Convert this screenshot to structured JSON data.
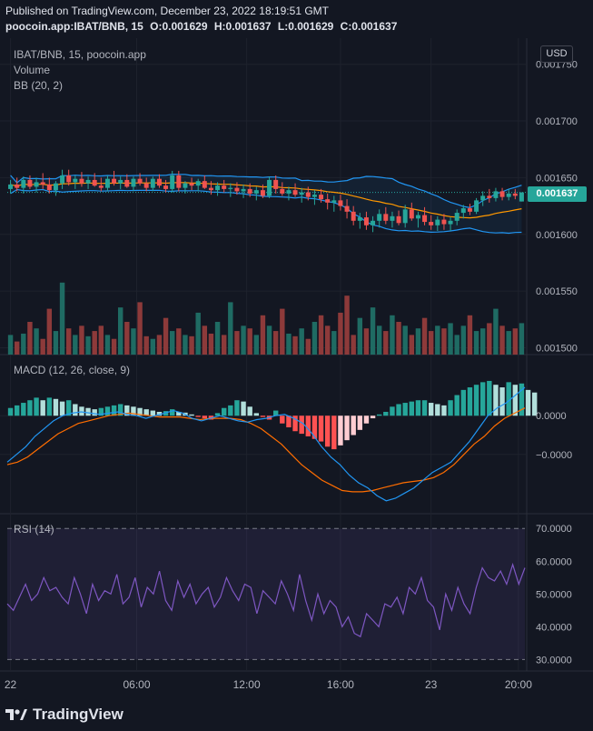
{
  "header": {
    "published": "Published on TradingView.com, December 23, 2022 18:19:51 GMT",
    "symbol_line": "poocoin.app:IBAT/BNB, 15",
    "o": "O:0.001629",
    "h": "H:0.001637",
    "l": "L:0.001629",
    "c": "C:0.001637"
  },
  "currency_button": "USD",
  "brand": "TradingView",
  "price_tag": "0.001637",
  "colors": {
    "up": "#26a69a",
    "down": "#ef5350",
    "bb_band": "#2196f3",
    "bb_basis": "#ff9800",
    "macd_line": "#2196f3",
    "signal_line": "#ff6d00",
    "rsi_line": "#7e57c2",
    "background": "#131722"
  },
  "chart_data": [
    {
      "type": "candlestick",
      "title": "IBAT/BNB, 15, poocoin.app",
      "legend": [
        "Volume",
        "BB (20, 2)"
      ],
      "y_ticks": [
        "0.001750",
        "0.001700",
        "0.001650",
        "0.001600",
        "0.001550",
        "0.001500"
      ],
      "ylim": [
        0.001494,
        0.001773
      ],
      "x_ticks": [
        "22",
        "06:00",
        "12:00",
        "16:00",
        "23",
        "20:00"
      ],
      "last_price": 0.001637,
      "candles": [
        [
          0.00164,
          0.001648,
          0.001636,
          0.001644
        ],
        [
          0.001644,
          0.00165,
          0.001638,
          0.001641
        ],
        [
          0.001641,
          0.001651,
          0.001636,
          0.001648
        ],
        [
          0.001648,
          0.001652,
          0.00164,
          0.001642
        ],
        [
          0.001642,
          0.00165,
          0.001637,
          0.001646
        ],
        [
          0.001646,
          0.001654,
          0.00164,
          0.001644
        ],
        [
          0.001644,
          0.00165,
          0.001636,
          0.001639
        ],
        [
          0.001639,
          0.001647,
          0.001634,
          0.001645
        ],
        [
          0.001645,
          0.001657,
          0.00164,
          0.001652
        ],
        [
          0.001652,
          0.001657,
          0.001643,
          0.001646
        ],
        [
          0.001646,
          0.001652,
          0.00164,
          0.001649
        ],
        [
          0.001649,
          0.001655,
          0.001642,
          0.001645
        ],
        [
          0.001645,
          0.001651,
          0.00164,
          0.001648
        ],
        [
          0.001648,
          0.001654,
          0.001642,
          0.001643
        ],
        [
          0.001643,
          0.00165,
          0.001638,
          0.001641
        ],
        [
          0.001641,
          0.001652,
          0.001638,
          0.001649
        ],
        [
          0.001649,
          0.001656,
          0.001643,
          0.001645
        ],
        [
          0.001645,
          0.001651,
          0.00164,
          0.001648
        ],
        [
          0.001648,
          0.001653,
          0.001641,
          0.001642
        ],
        [
          0.001642,
          0.001651,
          0.001638,
          0.001649
        ],
        [
          0.001649,
          0.001654,
          0.001643,
          0.001645
        ],
        [
          0.001645,
          0.00165,
          0.001638,
          0.001641
        ],
        [
          0.001641,
          0.001651,
          0.001638,
          0.001649
        ],
        [
          0.001649,
          0.001653,
          0.001641,
          0.001643
        ],
        [
          0.001643,
          0.001648,
          0.001637,
          0.00164
        ],
        [
          0.00164,
          0.001656,
          0.001637,
          0.001652
        ],
        [
          0.001652,
          0.001656,
          0.001638,
          0.001641
        ],
        [
          0.001641,
          0.001647,
          0.001636,
          0.001645
        ],
        [
          0.001645,
          0.00165,
          0.001639,
          0.001643
        ],
        [
          0.001643,
          0.001649,
          0.001638,
          0.001647
        ],
        [
          0.001647,
          0.001652,
          0.00164,
          0.001641
        ],
        [
          0.001641,
          0.001647,
          0.001635,
          0.001639
        ],
        [
          0.001639,
          0.001646,
          0.001634,
          0.001643
        ],
        [
          0.001643,
          0.001648,
          0.001637,
          0.00164
        ],
        [
          0.00164,
          0.001645,
          0.001633,
          0.001641
        ],
        [
          0.001641,
          0.001646,
          0.001635,
          0.001638
        ],
        [
          0.001638,
          0.001644,
          0.001632,
          0.00164
        ],
        [
          0.00164,
          0.001645,
          0.001633,
          0.001636
        ],
        [
          0.001636,
          0.001642,
          0.00163,
          0.001639
        ],
        [
          0.001639,
          0.001644,
          0.001632,
          0.001634
        ],
        [
          0.001634,
          0.001651,
          0.001632,
          0.001648
        ],
        [
          0.001648,
          0.001652,
          0.001636,
          0.00164
        ],
        [
          0.00164,
          0.001646,
          0.001634,
          0.001636
        ],
        [
          0.001636,
          0.001642,
          0.00163,
          0.001639
        ],
        [
          0.001639,
          0.001645,
          0.001633,
          0.001635
        ],
        [
          0.001635,
          0.001641,
          0.001628,
          0.001637
        ],
        [
          0.001637,
          0.001642,
          0.00163,
          0.001633
        ],
        [
          0.001633,
          0.001639,
          0.001626,
          0.001635
        ],
        [
          0.001635,
          0.00164,
          0.001628,
          0.001631
        ],
        [
          0.001631,
          0.001636,
          0.001622,
          0.001628
        ],
        [
          0.001628,
          0.001634,
          0.00162,
          0.00163
        ],
        [
          0.00163,
          0.001635,
          0.001621,
          0.001625
        ],
        [
          0.001625,
          0.001631,
          0.001614,
          0.00162
        ],
        [
          0.00162,
          0.001625,
          0.001608,
          0.001612
        ],
        [
          0.001612,
          0.001619,
          0.001605,
          0.001615
        ],
        [
          0.001615,
          0.00162,
          0.001604,
          0.001608
        ],
        [
          0.001608,
          0.001616,
          0.001602,
          0.001612
        ],
        [
          0.001612,
          0.001622,
          0.001606,
          0.001618
        ],
        [
          0.001618,
          0.001624,
          0.001609,
          0.001612
        ],
        [
          0.001612,
          0.00162,
          0.001606,
          0.001616
        ],
        [
          0.001616,
          0.001621,
          0.001608,
          0.00161
        ],
        [
          0.00161,
          0.001626,
          0.001606,
          0.001622
        ],
        [
          0.001622,
          0.001628,
          0.001612,
          0.001614
        ],
        [
          0.001614,
          0.00162,
          0.001606,
          0.001617
        ],
        [
          0.001617,
          0.001624,
          0.001608,
          0.001611
        ],
        [
          0.001611,
          0.001617,
          0.001604,
          0.001608
        ],
        [
          0.001608,
          0.001616,
          0.001603,
          0.001613
        ],
        [
          0.001613,
          0.001618,
          0.001604,
          0.001609
        ],
        [
          0.001609,
          0.001615,
          0.001603,
          0.001612
        ],
        [
          0.001612,
          0.001622,
          0.001608,
          0.001619
        ],
        [
          0.001619,
          0.001626,
          0.001614,
          0.001623
        ],
        [
          0.001623,
          0.001627,
          0.001617,
          0.00162
        ],
        [
          0.00162,
          0.001632,
          0.001618,
          0.00163
        ],
        [
          0.00163,
          0.001638,
          0.001625,
          0.001634
        ],
        [
          0.001634,
          0.00164,
          0.001628,
          0.001632
        ],
        [
          0.001632,
          0.001641,
          0.001629,
          0.001638
        ],
        [
          0.001638,
          0.001641,
          0.00163,
          0.001633
        ],
        [
          0.001633,
          0.00164,
          0.00163,
          0.001636
        ],
        [
          0.001636,
          0.00164,
          0.001631,
          0.001634
        ],
        [
          0.001629,
          0.001637,
          0.001629,
          0.001637
        ]
      ],
      "volume": [
        0.15,
        0.1,
        0.16,
        0.25,
        0.2,
        0.12,
        0.35,
        0.18,
        0.55,
        0.2,
        0.15,
        0.22,
        0.14,
        0.18,
        0.22,
        0.15,
        0.12,
        0.36,
        0.25,
        0.2,
        0.4,
        0.14,
        0.12,
        0.15,
        0.28,
        0.18,
        0.2,
        0.15,
        0.14,
        0.32,
        0.22,
        0.16,
        0.25,
        0.15,
        0.4,
        0.18,
        0.22,
        0.2,
        0.15,
        0.3,
        0.22,
        0.18,
        0.35,
        0.16,
        0.14,
        0.2,
        0.12,
        0.25,
        0.3,
        0.22,
        0.18,
        0.32,
        0.45,
        0.15,
        0.28,
        0.2,
        0.36,
        0.22,
        0.18,
        0.3,
        0.25,
        0.22,
        0.15,
        0.2,
        0.28,
        0.18,
        0.22,
        0.2,
        0.24,
        0.15,
        0.22,
        0.3,
        0.18,
        0.2,
        0.24,
        0.35,
        0.22,
        0.18,
        0.2,
        0.24
      ],
      "volume_scale": [
        0,
        1
      ]
    },
    {
      "type": "line",
      "title": "MACD (12, 26, close, 9)",
      "y_ticks": [
        "0.0000",
        "−0.0000"
      ],
      "ylim": [
        -3.8,
        2.3
      ],
      "x_ticks": [
        "22",
        "06:00",
        "12:00",
        "16:00",
        "23",
        "20:00"
      ],
      "histogram": [
        0.3,
        0.4,
        0.5,
        0.6,
        0.7,
        0.6,
        0.7,
        0.65,
        0.55,
        0.6,
        0.45,
        0.35,
        0.3,
        0.25,
        0.3,
        0.35,
        0.4,
        0.45,
        0.4,
        0.35,
        0.3,
        0.25,
        0.2,
        0.15,
        0.18,
        0.25,
        0.15,
        0.12,
        0.05,
        -0.05,
        -0.1,
        -0.15,
        0.1,
        0.3,
        0.4,
        0.6,
        0.55,
        0.35,
        0.1,
        -0.05,
        -0.15,
        0.2,
        -0.3,
        -0.45,
        -0.6,
        -0.7,
        -0.8,
        -0.9,
        -1.0,
        -1.2,
        -1.3,
        -1.15,
        -0.95,
        -0.75,
        -0.55,
        -0.3,
        -0.1,
        0.05,
        0.15,
        0.35,
        0.45,
        0.5,
        0.55,
        0.6,
        0.6,
        0.5,
        0.45,
        0.4,
        0.6,
        0.8,
        1.0,
        1.1,
        1.2,
        1.3,
        1.35,
        1.2,
        1.1,
        1.3,
        1.2,
        1.25,
        1.0,
        0.9
      ],
      "macd": [
        -1.8,
        -1.5,
        -1.2,
        -0.8,
        -0.5,
        -0.2,
        0.0,
        0.1,
        0.15,
        0.1,
        0.05,
        0.1,
        0.15,
        0.05,
        0.0,
        -0.1,
        0.0,
        0.1,
        0.2,
        0.1,
        -0.1,
        -0.2,
        -0.1,
        0.0,
        -0.1,
        -0.2,
        -0.25,
        -0.15,
        -0.1,
        0.0,
        0.05,
        -0.1,
        -0.3,
        -0.7,
        -1.2,
        -1.6,
        -1.9,
        -2.3,
        -2.6,
        -2.8,
        -3.1,
        -3.3,
        -3.2,
        -3.0,
        -2.8,
        -2.5,
        -2.2,
        -2.0,
        -1.8,
        -1.4,
        -1.0,
        -0.5,
        0.0,
        0.3,
        0.5,
        0.8,
        1.1
      ],
      "signal": [
        -1.9,
        -1.8,
        -1.6,
        -1.3,
        -1.0,
        -0.7,
        -0.5,
        -0.3,
        -0.2,
        -0.1,
        0.0,
        0.05,
        0.1,
        0.05,
        0.0,
        -0.05,
        -0.05,
        -0.05,
        -0.1,
        -0.15,
        -0.1,
        -0.1,
        -0.1,
        -0.15,
        -0.3,
        -0.5,
        -0.8,
        -1.1,
        -1.5,
        -1.9,
        -2.2,
        -2.5,
        -2.7,
        -2.9,
        -2.95,
        -2.95,
        -2.9,
        -2.8,
        -2.7,
        -2.6,
        -2.55,
        -2.5,
        -2.4,
        -2.2,
        -1.9,
        -1.5,
        -1.1,
        -0.8,
        -0.4,
        -0.1,
        0.1,
        0.3
      ]
    },
    {
      "type": "line",
      "title": "RSI (14)",
      "y_ticks": [
        "70.0000",
        "60.0000",
        "50.0000",
        "40.0000",
        "30.0000"
      ],
      "ylim": [
        26.5,
        74.5
      ],
      "levels": [
        70,
        30
      ],
      "x_ticks": [
        "22",
        "06:00",
        "12:00",
        "16:00",
        "23",
        "20:00"
      ],
      "values": [
        47,
        45,
        49,
        53,
        48,
        50,
        55,
        51,
        52,
        49,
        47,
        55,
        50,
        44,
        53,
        48,
        51,
        50,
        56,
        47,
        49,
        55,
        46,
        52,
        50,
        57,
        48,
        45,
        54,
        49,
        53,
        47,
        50,
        52,
        46,
        49,
        55,
        51,
        48,
        53,
        52,
        44,
        51,
        49,
        47,
        54,
        50,
        45,
        56,
        48,
        42,
        50,
        44,
        48,
        46,
        40,
        43,
        38,
        37,
        44,
        42,
        40,
        47,
        46,
        49,
        44,
        52,
        50,
        55,
        48,
        46,
        39,
        50,
        45,
        52,
        47,
        44,
        52,
        58,
        55,
        54,
        57,
        53,
        59,
        53,
        58
      ]
    }
  ]
}
